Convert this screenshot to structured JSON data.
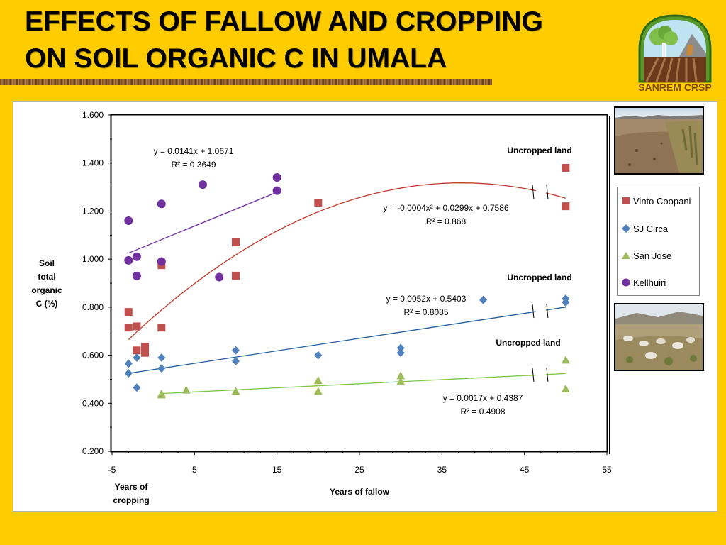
{
  "slide": {
    "title_line1": "EFFECTS OF FALLOW AND CROPPING",
    "title_line2": "ON SOIL ORGANIC C IN UMALA",
    "logo_text": "SANREM CRSP"
  },
  "chart_data": {
    "type": "scatter",
    "title": "",
    "ylabel": [
      "Soil",
      "total",
      "organic",
      "C (%)"
    ],
    "xlabel": "Years of fallow",
    "xlabel_left": [
      "Years of",
      "cropping"
    ],
    "xlim": [
      -5,
      55
    ],
    "ylim": [
      0.2,
      1.6
    ],
    "xticks": [
      -5,
      5,
      15,
      25,
      35,
      45,
      55
    ],
    "yticks": [
      0.2,
      0.4,
      0.6,
      0.8,
      1.0,
      1.2,
      1.4,
      1.6
    ],
    "ytick_labels": [
      "0.200",
      "0.400",
      "0.600",
      "0.800",
      "1.000",
      "1.200",
      "1.400",
      "1.600"
    ],
    "legend_position": "right",
    "series": [
      {
        "name": "Vinto Coopani",
        "marker": "square",
        "color": "#C0504D",
        "x": [
          -3,
          -3,
          -2,
          -2,
          -1,
          -1,
          1,
          1,
          10,
          10,
          20,
          50,
          50
        ],
        "y": [
          0.78,
          0.715,
          0.72,
          0.62,
          0.635,
          0.61,
          0.975,
          0.715,
          1.07,
          0.93,
          1.235,
          1.38,
          1.22
        ]
      },
      {
        "name": "SJ Circa",
        "marker": "diamond",
        "color": "#4F81BD",
        "x": [
          -3,
          -3,
          -2,
          -2,
          1,
          1,
          10,
          10,
          20,
          30,
          30,
          40,
          50,
          50
        ],
        "y": [
          0.565,
          0.525,
          0.59,
          0.465,
          0.59,
          0.545,
          0.62,
          0.575,
          0.6,
          0.63,
          0.61,
          0.83,
          0.835,
          0.82
        ]
      },
      {
        "name": "San Jose",
        "marker": "triangle",
        "color": "#9BBB59",
        "x": [
          1,
          1,
          4,
          10,
          20,
          20,
          30,
          30,
          50,
          50
        ],
        "y": [
          0.44,
          0.435,
          0.455,
          0.45,
          0.495,
          0.45,
          0.515,
          0.49,
          0.58,
          0.46
        ]
      },
      {
        "name": "Kellhuiri",
        "marker": "circle",
        "color": "#7030A0",
        "x": [
          -3,
          -3,
          -2,
          -2,
          1,
          1,
          6,
          8,
          15,
          15
        ],
        "y": [
          1.16,
          0.995,
          1.01,
          0.93,
          1.23,
          0.99,
          1.31,
          0.925,
          1.34,
          1.285
        ]
      }
    ],
    "trendlines": [
      {
        "series": "Kellhuiri",
        "kind": "linear",
        "color": "#7030A0",
        "a": 0.0141,
        "b": 1.0671,
        "x_range": [
          -3,
          15
        ],
        "equation": "y = 0.0141x + 1.0671",
        "r2": "R² = 0.3649"
      },
      {
        "series": "Vinto Coopani",
        "kind": "poly2",
        "color": "#C0392B",
        "a": -0.0004,
        "b": 0.0299,
        "c": 0.7586,
        "x_range": [
          -3,
          50
        ],
        "equation": "y = -0.0004x² + 0.0299x + 0.7586",
        "r2": "R² = 0.868"
      },
      {
        "series": "SJ Circa",
        "kind": "linear",
        "color": "#1F5F9F",
        "a": 0.0052,
        "b": 0.5403,
        "x_range": [
          -3,
          50
        ],
        "equation": "y = 0.0052x + 0.5403",
        "r2": "R² = 0.8085"
      },
      {
        "series": "San Jose",
        "kind": "linear",
        "color": "#7CC442",
        "a": 0.0017,
        "b": 0.4387,
        "x_range": [
          1,
          50
        ],
        "equation": "y = 0.0017x + 0.4387",
        "r2": "R² = 0.4908"
      }
    ],
    "annotations": [
      "Uncropped land",
      "Uncropped land",
      "Uncropped land"
    ]
  }
}
